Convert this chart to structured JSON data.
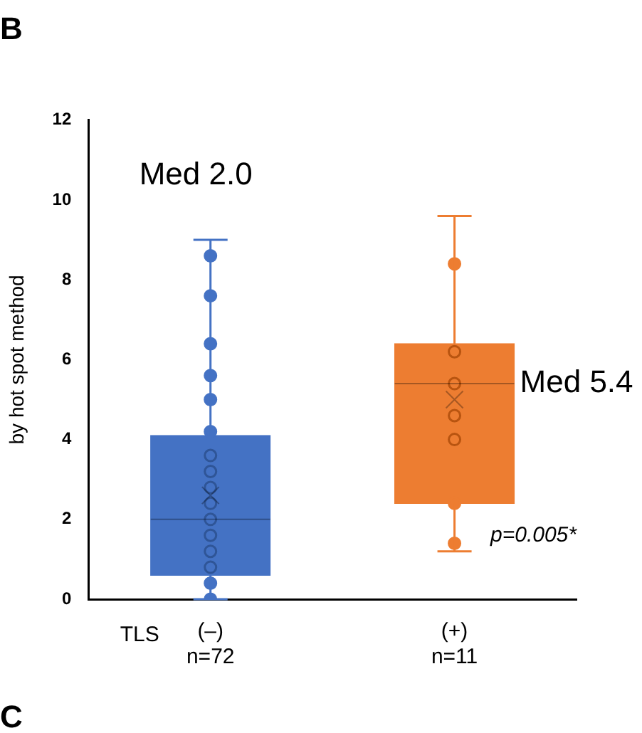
{
  "chart_data": {
    "type": "box",
    "title": "B",
    "xlabel": "TLS",
    "ylabel": "by hot spot method",
    "categories": [
      "(–)\nn=72",
      "(+)\nn=11"
    ],
    "colors": [
      "#4472c4",
      "#ed7d31"
    ],
    "boxes": [
      {
        "low": 0,
        "q1": 0.6,
        "median": 2.0,
        "q3": 4.1,
        "high": 9.0,
        "mean": 2.6
      },
      {
        "low": 1.2,
        "q1": 2.4,
        "median": 5.4,
        "q3": 6.4,
        "high": 9.6,
        "mean": 5.0
      }
    ],
    "series": [
      {
        "type": "scatter",
        "color": "#4472c4",
        "x": [
          "(–)\nn=72",
          "(–)\nn=72",
          "(–)\nn=72",
          "(–)\nn=72",
          "(–)\nn=72",
          "(–)\nn=72",
          "(–)\nn=72",
          "(–)\nn=72"
        ],
        "values": [
          8.6,
          7.6,
          6.4,
          5.6,
          5.0,
          4.2,
          0.4,
          0
        ]
      },
      {
        "type": "scatter",
        "color": "#2f5597",
        "x": [
          "(–)\nn=72",
          "(–)\nn=72",
          "(–)\nn=72",
          "(–)\nn=72",
          "(–)\nn=72",
          "(–)\nn=72",
          "(–)\nn=72",
          "(–)\nn=72"
        ],
        "values": [
          3.6,
          3.2,
          2.8,
          2.4,
          2.0,
          1.6,
          1.2,
          0.8
        ]
      },
      {
        "type": "scatter",
        "color": "#ed7d31",
        "x": [
          "(+)\nn=11",
          "(+)\nn=11",
          "(+)\nn=11"
        ],
        "values": [
          8.4,
          2.4,
          1.4
        ]
      },
      {
        "type": "scatter",
        "color": "#b85410",
        "x": [
          "(+)\nn=11",
          "(+)\nn=11",
          "(+)\nn=11",
          "(+)\nn=11"
        ],
        "values": [
          6.2,
          5.4,
          4.6,
          4.0
        ]
      }
    ],
    "marker": "circle",
    "ylim": [
      0,
      12
    ],
    "yticks": [
      0,
      2,
      4,
      6,
      8,
      10,
      12
    ],
    "grid": false,
    "legend": false,
    "annotations": [
      "Med 2.0",
      "Med 5.4",
      "p=0.005*",
      "C"
    ]
  }
}
